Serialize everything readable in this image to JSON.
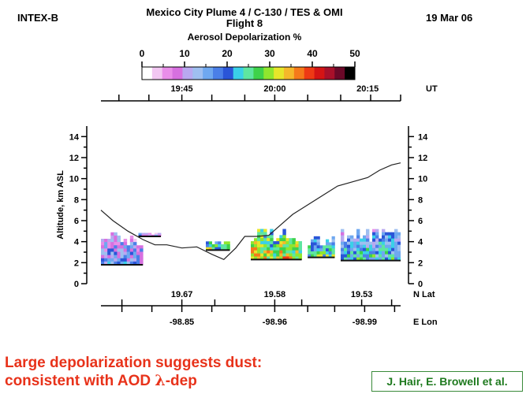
{
  "header": {
    "campaign": "INTEX-B",
    "title_line1": "Mexico City Plume 4 /  C-130 / TES & OMI",
    "title_line2": "Flight 8",
    "date": "19 Mar 06"
  },
  "colorbar": {
    "title": "Aerosol Depolarization %",
    "tick_labels": [
      "0",
      "10",
      "20",
      "30",
      "40",
      "50"
    ],
    "range": [
      0,
      50
    ],
    "colors": [
      "#ffffff",
      "#f2c7f2",
      "#e98ee9",
      "#d770e0",
      "#b9a8f0",
      "#9fbff0",
      "#6fa8f0",
      "#4a7fe8",
      "#2a55d8",
      "#3ad0e8",
      "#5ee6a0",
      "#3ed24a",
      "#8fe62e",
      "#e6e62a",
      "#f5b82a",
      "#f57a1a",
      "#ee3a14",
      "#d41414",
      "#a8102a",
      "#6a0828",
      "#000000"
    ]
  },
  "chart_data": {
    "type": "curtain",
    "time_axis": {
      "label": "UT",
      "tick_labels": [
        "19:45",
        "20:00",
        "20:15"
      ]
    },
    "lat_axis": {
      "label": "N Lat",
      "tick_labels": [
        "19.67",
        "19.58",
        "19.53"
      ]
    },
    "lon_axis": {
      "label": "E Lon",
      "tick_labels": [
        "-98.85",
        "-98.96",
        "-98.99"
      ]
    },
    "ylabel": "Altitude, km ASL",
    "ylim": [
      0,
      15
    ],
    "y_ticks": [
      0,
      2,
      4,
      6,
      8,
      10,
      12,
      14
    ],
    "x_range": [
      0,
      1
    ],
    "aircraft_track": {
      "x": [
        0.0,
        0.04,
        0.09,
        0.14,
        0.18,
        0.22,
        0.27,
        0.32,
        0.37,
        0.41,
        0.45,
        0.48,
        0.52,
        0.56,
        0.6,
        0.64,
        0.69,
        0.74,
        0.79,
        0.84,
        0.89,
        0.93,
        0.97,
        1.0
      ],
      "altitude_km": [
        7.0,
        6.0,
        5.0,
        4.2,
        3.7,
        3.7,
        3.4,
        3.5,
        2.8,
        2.3,
        3.4,
        4.5,
        4.5,
        4.6,
        5.6,
        6.6,
        7.5,
        8.4,
        9.3,
        9.7,
        10.1,
        10.8,
        11.3,
        11.5
      ]
    },
    "aerosol_layers": [
      {
        "x_start": 0.0,
        "x_end": 0.14,
        "base_km": 1.8,
        "top_km": 5.2,
        "dominant_depol_pct": 12
      },
      {
        "x_start": 0.125,
        "x_end": 0.2,
        "base_km": 4.5,
        "top_km": 5.0,
        "dominant_depol_pct": 12
      },
      {
        "x_start": 0.35,
        "x_end": 0.43,
        "base_km": 3.2,
        "top_km": 4.3,
        "dominant_depol_pct": 25
      },
      {
        "x_start": 0.5,
        "x_end": 0.67,
        "base_km": 2.3,
        "top_km": 5.5,
        "dominant_depol_pct": 28
      },
      {
        "x_start": 0.69,
        "x_end": 0.78,
        "base_km": 2.5,
        "top_km": 4.8,
        "dominant_depol_pct": 22
      },
      {
        "x_start": 0.8,
        "x_end": 1.0,
        "base_km": 2.2,
        "top_km": 5.5,
        "dominant_depol_pct": 18
      }
    ]
  },
  "caption": {
    "line1": "Large depolarization suggests dust:",
    "line2_prefix": "consistent with AOD ",
    "lambda": "λ",
    "line2_suffix": "-dep"
  },
  "credit": "J. Hair, E. Browell et al."
}
